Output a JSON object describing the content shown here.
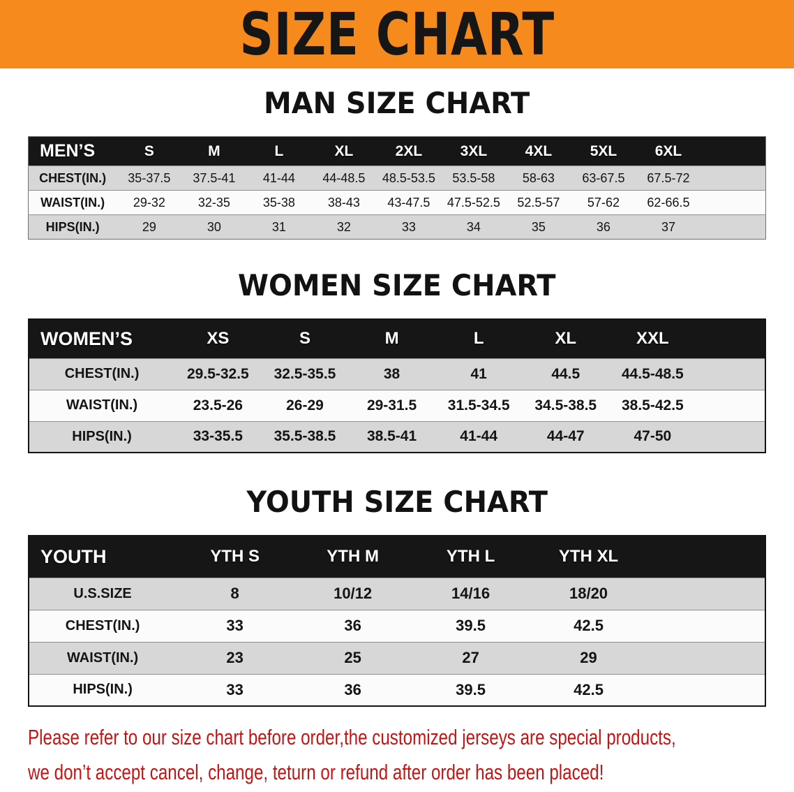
{
  "banner": {
    "title": "SIZE CHART"
  },
  "colors": {
    "banner_bg": "#f68a1d",
    "table_header_bg": "#161616",
    "row_stripe_gray": "#d7d7d7",
    "disclaimer_red": "#c51414"
  },
  "men": {
    "heading": "MAN SIZE CHART",
    "table": {
      "header": [
        "MEN’S",
        "S",
        "M",
        "L",
        "XL",
        "2XL",
        "3XL",
        "4XL",
        "5XL",
        "6XL"
      ],
      "rows": [
        [
          "CHEST(IN.)",
          "35-37.5",
          "37.5-41",
          "41-44",
          "44-48.5",
          "48.5-53.5",
          "53.5-58",
          "58-63",
          "63-67.5",
          "67.5-72"
        ],
        [
          "WAIST(IN.)",
          "29-32",
          "32-35",
          "35-38",
          "38-43",
          "43-47.5",
          "47.5-52.5",
          "52.5-57",
          "57-62",
          "62-66.5"
        ],
        [
          "HIPS(IN.)",
          "29",
          "30",
          "31",
          "32",
          "33",
          "34",
          "35",
          "36",
          "37"
        ]
      ]
    }
  },
  "women": {
    "heading": "WOMEN SIZE CHART",
    "table": {
      "header": [
        "WOMEN’S",
        "XS",
        "S",
        "M",
        "L",
        "XL",
        "XXL"
      ],
      "rows": [
        [
          "CHEST(IN.)",
          "29.5-32.5",
          "32.5-35.5",
          "38",
          "41",
          "44.5",
          "44.5-48.5"
        ],
        [
          "WAIST(IN.)",
          "23.5-26",
          "26-29",
          "29-31.5",
          "31.5-34.5",
          "34.5-38.5",
          "38.5-42.5"
        ],
        [
          "HIPS(IN.)",
          "33-35.5",
          "35.5-38.5",
          "38.5-41",
          "41-44",
          "44-47",
          "47-50"
        ]
      ]
    }
  },
  "youth": {
    "heading": "YOUTH SIZE CHART",
    "table": {
      "header": [
        "YOUTH",
        "YTH S",
        "YTH M",
        "YTH L",
        "YTH XL"
      ],
      "rows": [
        [
          "U.S.SIZE",
          "8",
          "10/12",
          "14/16",
          "18/20"
        ],
        [
          "CHEST(IN.)",
          "33",
          "36",
          "39.5",
          "42.5"
        ],
        [
          "WAIST(IN.)",
          "23",
          "25",
          "27",
          "29"
        ],
        [
          "HIPS(IN.)",
          "33",
          "36",
          "39.5",
          "42.5"
        ]
      ]
    }
  },
  "disclaimer": {
    "line1": "Please refer to our size chart before order,the customized jerseys are special products,",
    "line2": "we don’t accept cancel, change, teturn or refund after order has been placed!"
  }
}
